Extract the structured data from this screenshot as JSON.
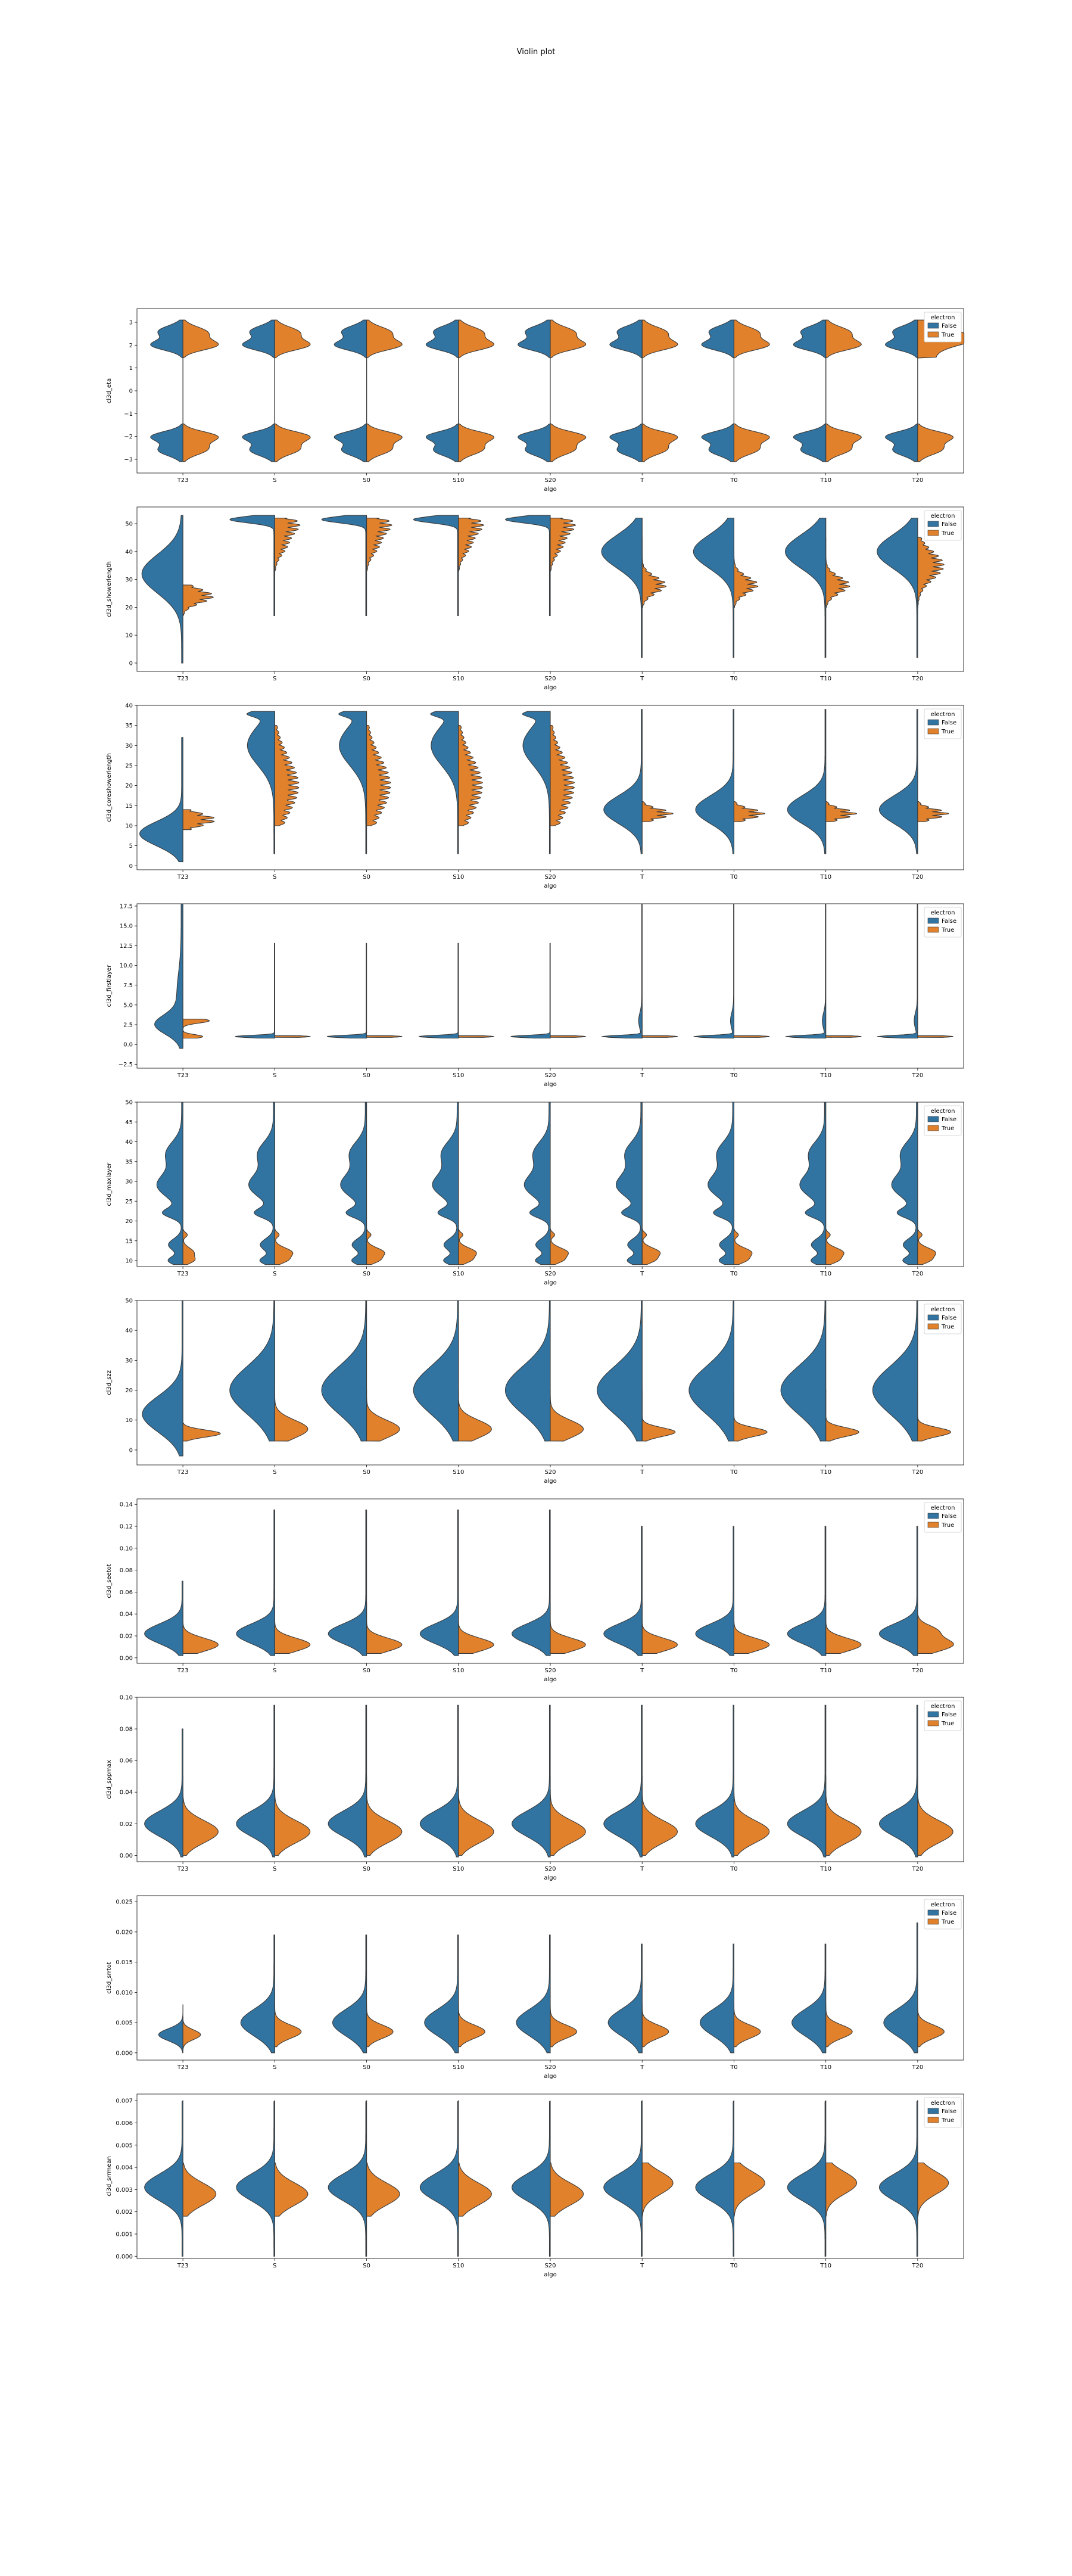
{
  "figure": {
    "title": "Violin plot"
  },
  "colors": {
    "false": "#3274a1",
    "true": "#e1812c",
    "outline": "#3a3a3a"
  },
  "chart_data": [
    {
      "type": "violin",
      "xlabel": "algo",
      "ylabel": "cl3d_eta",
      "ylim": [
        -3.6,
        3.6
      ],
      "yticks": [
        -3,
        -2,
        -1,
        0,
        1,
        2,
        3
      ],
      "ytick_labels": [
        "−3",
        "−2",
        "−1",
        "0",
        "1",
        "2",
        "3"
      ],
      "categories": [
        "T23",
        "S",
        "S0",
        "S10",
        "S20",
        "T",
        "T0",
        "T10",
        "T20"
      ],
      "legend": {
        "title": "electron",
        "entries": [
          "False",
          "True"
        ],
        "placement": "top-right"
      },
      "shape": "eta"
    },
    {
      "type": "violin",
      "xlabel": "algo",
      "ylabel": "cl3d_showerlength",
      "ylim": [
        -3,
        56
      ],
      "yticks": [
        0,
        10,
        20,
        30,
        40,
        50
      ],
      "ytick_labels": [
        "0",
        "10",
        "20",
        "30",
        "40",
        "50"
      ],
      "categories": [
        "T23",
        "S",
        "S0",
        "S10",
        "S20",
        "T",
        "T0",
        "T10",
        "T20"
      ],
      "legend": {
        "title": "electron",
        "entries": [
          "False",
          "True"
        ],
        "placement": "top-right"
      },
      "shape": "showerlength"
    },
    {
      "type": "violin",
      "xlabel": "algo",
      "ylabel": "cl3d_coreshowerlength",
      "ylim": [
        -1,
        40
      ],
      "yticks": [
        0,
        5,
        10,
        15,
        20,
        25,
        30,
        35,
        40
      ],
      "ytick_labels": [
        "0",
        "5",
        "10",
        "15",
        "20",
        "25",
        "30",
        "35",
        "40"
      ],
      "categories": [
        "T23",
        "S",
        "S0",
        "S10",
        "S20",
        "T",
        "T0",
        "T10",
        "T20"
      ],
      "legend": {
        "title": "electron",
        "entries": [
          "False",
          "True"
        ],
        "placement": "top-right"
      },
      "shape": "coreshower"
    },
    {
      "type": "violin",
      "xlabel": "algo",
      "ylabel": "cl3d_firstlayer",
      "ylim": [
        -3,
        17.8
      ],
      "yticks": [
        -2.5,
        0,
        2.5,
        5,
        7.5,
        10,
        12.5,
        15,
        17.5
      ],
      "ytick_labels": [
        "−2.5",
        "0.0",
        "2.5",
        "5.0",
        "7.5",
        "10.0",
        "12.5",
        "15.0",
        "17.5"
      ],
      "categories": [
        "T23",
        "S",
        "S0",
        "S10",
        "S20",
        "T",
        "T0",
        "T10",
        "T20"
      ],
      "legend": {
        "title": "electron",
        "entries": [
          "False",
          "True"
        ],
        "placement": "top-right"
      },
      "shape": "firstlayer"
    },
    {
      "type": "violin",
      "xlabel": "algo",
      "ylabel": "cl3d_maxlayer",
      "ylim": [
        8.5,
        50
      ],
      "yticks": [
        10,
        15,
        20,
        25,
        30,
        35,
        40,
        45,
        50
      ],
      "ytick_labels": [
        "10",
        "15",
        "20",
        "25",
        "30",
        "35",
        "40",
        "45",
        "50"
      ],
      "categories": [
        "T23",
        "S",
        "S0",
        "S10",
        "S20",
        "T",
        "T0",
        "T10",
        "T20"
      ],
      "legend": {
        "title": "electron",
        "entries": [
          "False",
          "True"
        ],
        "placement": "top-right"
      },
      "shape": "maxlayer"
    },
    {
      "type": "violin",
      "xlabel": "algo",
      "ylabel": "cl3d_szz",
      "ylim": [
        -5,
        50
      ],
      "yticks": [
        0,
        10,
        20,
        30,
        40,
        50
      ],
      "ytick_labels": [
        "0",
        "10",
        "20",
        "30",
        "40",
        "50"
      ],
      "categories": [
        "T23",
        "S",
        "S0",
        "S10",
        "S20",
        "T",
        "T0",
        "T10",
        "T20"
      ],
      "legend": {
        "title": "electron",
        "entries": [
          "False",
          "True"
        ],
        "placement": "top-right"
      },
      "shape": "szz"
    },
    {
      "type": "violin",
      "xlabel": "algo",
      "ylabel": "cl3d_seetot",
      "ylim": [
        -0.005,
        0.145
      ],
      "yticks": [
        0,
        0.02,
        0.04,
        0.06,
        0.08,
        0.1,
        0.12,
        0.14
      ],
      "ytick_labels": [
        "0.00",
        "0.02",
        "0.04",
        "0.06",
        "0.08",
        "0.10",
        "0.12",
        "0.14"
      ],
      "categories": [
        "T23",
        "S",
        "S0",
        "S10",
        "S20",
        "T",
        "T0",
        "T10",
        "T20"
      ],
      "legend": {
        "title": "electron",
        "entries": [
          "False",
          "True"
        ],
        "placement": "top-right"
      },
      "shape": "seetot"
    },
    {
      "type": "violin",
      "xlabel": "algo",
      "ylabel": "cl3d_sppmax",
      "ylim": [
        -0.004,
        0.1
      ],
      "yticks": [
        0,
        0.02,
        0.04,
        0.06,
        0.08,
        0.1
      ],
      "ytick_labels": [
        "0.00",
        "0.02",
        "0.04",
        "0.06",
        "0.08",
        "0.10"
      ],
      "categories": [
        "T23",
        "S",
        "S0",
        "S10",
        "S20",
        "T",
        "T0",
        "T10",
        "T20"
      ],
      "legend": {
        "title": "electron",
        "entries": [
          "False",
          "True"
        ],
        "placement": "top-right"
      },
      "shape": "sppmax"
    },
    {
      "type": "violin",
      "xlabel": "algo",
      "ylabel": "cl3d_srrtot",
      "ylim": [
        -0.0012,
        0.026
      ],
      "yticks": [
        0,
        0.005,
        0.01,
        0.015,
        0.02,
        0.025
      ],
      "ytick_labels": [
        "0.000",
        "0.005",
        "0.010",
        "0.015",
        "0.020",
        "0.025"
      ],
      "categories": [
        "T23",
        "S",
        "S0",
        "S10",
        "S20",
        "T",
        "T0",
        "T10",
        "T20"
      ],
      "legend": {
        "title": "electron",
        "entries": [
          "False",
          "True"
        ],
        "placement": "top-right"
      },
      "shape": "srrtot"
    },
    {
      "type": "violin",
      "xlabel": "algo",
      "ylabel": "cl3d_srrmean",
      "ylim": [
        -0.0001,
        0.0073
      ],
      "yticks": [
        0,
        0.001,
        0.002,
        0.003,
        0.004,
        0.005,
        0.006,
        0.007
      ],
      "ytick_labels": [
        "0.000",
        "0.001",
        "0.002",
        "0.003",
        "0.004",
        "0.005",
        "0.006",
        "0.007"
      ],
      "categories": [
        "T23",
        "S",
        "S0",
        "S10",
        "S20",
        "T",
        "T0",
        "T10",
        "T20"
      ],
      "legend": {
        "title": "electron",
        "entries": [
          "False",
          "True"
        ],
        "placement": "top-right"
      },
      "shape": "srrmean"
    }
  ]
}
